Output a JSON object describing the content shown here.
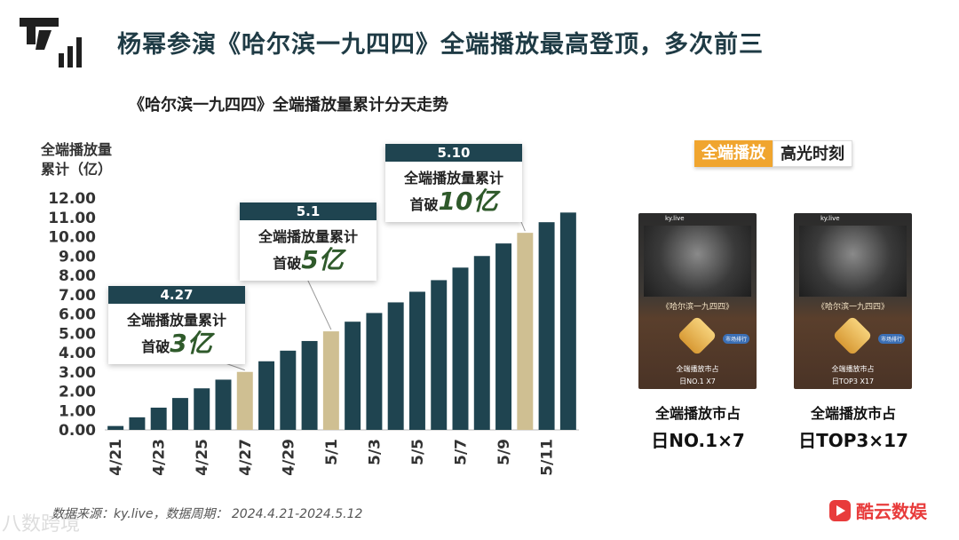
{
  "page_title": "杨幂参演《哈尔滨一九四四》全端播放最高登顶，多次前三",
  "chart_title": "《哈尔滨一九四四》全端播放量累计分天走势",
  "chart_data": {
    "type": "bar",
    "ylabel_line1": "全端播放量",
    "ylabel_line2": "累计（亿）",
    "ylim": [
      0,
      12
    ],
    "y_ticks": [
      "0.00",
      "1.00",
      "2.00",
      "3.00",
      "4.00",
      "5.00",
      "6.00",
      "7.00",
      "8.00",
      "9.00",
      "10.00",
      "11.00",
      "12.00"
    ],
    "categories": [
      "4/21",
      "4/22",
      "4/23",
      "4/24",
      "4/25",
      "4/26",
      "4/27",
      "4/28",
      "4/29",
      "4/30",
      "5/1",
      "5/2",
      "5/3",
      "5/4",
      "5/5",
      "5/6",
      "5/7",
      "5/8",
      "5/9",
      "5/10",
      "5/11",
      "5/12"
    ],
    "x_tick_labels": [
      "4/21",
      "",
      "4/23",
      "",
      "4/25",
      "",
      "4/27",
      "",
      "4/29",
      "",
      "5/1",
      "",
      "5/3",
      "",
      "5/5",
      "",
      "5/7",
      "",
      "5/9",
      "",
      "5/11",
      ""
    ],
    "values": [
      0.2,
      0.65,
      1.15,
      1.65,
      2.15,
      2.6,
      3.0,
      3.55,
      4.1,
      4.6,
      5.1,
      5.6,
      6.05,
      6.6,
      7.15,
      7.75,
      8.4,
      9.0,
      9.65,
      10.2,
      10.75,
      11.25
    ],
    "highlight_indices": [
      6,
      10,
      19
    ],
    "colors": {
      "bar": "#1f4450",
      "highlight": "#cfbf92",
      "axis": "#bbbbbb"
    }
  },
  "callouts": [
    {
      "date": "4.27",
      "text": "全端播放量累计",
      "prefix": "首破",
      "value": "3亿"
    },
    {
      "date": "5.1",
      "text": "全端播放量累计",
      "prefix": "首破",
      "value": "5亿"
    },
    {
      "date": "5.10",
      "text": "全端播放量累计",
      "prefix": "首破",
      "value": "10亿"
    }
  ],
  "panel": {
    "badge_a": "全端播放",
    "badge_b": "高光时刻",
    "cards": [
      {
        "app": "ky.live",
        "show": "《哈尔滨一九四四》",
        "button": "市场排行",
        "stat": "全端播放市占",
        "rank_small": "日NO.1   X7",
        "caption1": "全端播放市占",
        "caption2": "日NO.1×7"
      },
      {
        "app": "ky.live",
        "show": "《哈尔滨一九四四》",
        "button": "市场排行",
        "stat": "全端播放市占",
        "rank_small": "日TOP3   X17",
        "caption1": "全端播放市占",
        "caption2": "日TOP3×17"
      }
    ]
  },
  "source": "数据来源：ky.live，数据周期： 2024.4.21-2024.5.12",
  "watermark": "八数跨境",
  "brand": "酷云数娱"
}
